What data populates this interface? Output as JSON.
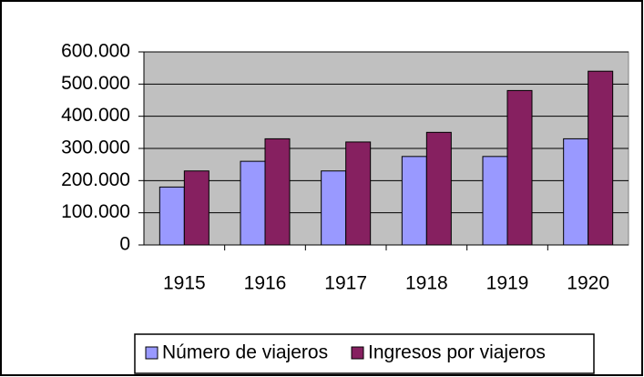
{
  "chart_data": {
    "type": "bar",
    "categories": [
      "1915",
      "1916",
      "1917",
      "1918",
      "1919",
      "1920"
    ],
    "series": [
      {
        "name": "Número de viajeros",
        "color": "#9999ff",
        "values": [
          180000,
          260000,
          230000,
          275000,
          275000,
          330000
        ]
      },
      {
        "name": "Ingresos por viajeros",
        "color": "#862060",
        "values": [
          230000,
          330000,
          320000,
          350000,
          480000,
          540000
        ]
      }
    ],
    "ylim": [
      0,
      600000
    ],
    "yticks": [
      0,
      {
        "value": 100000,
        "label": "100.000"
      },
      {
        "value": 200000,
        "label": "200.000"
      },
      {
        "value": 300000,
        "label": "300.000"
      },
      {
        "value": 400000,
        "label": "400.000"
      },
      {
        "value": 500000,
        "label": "500.000"
      },
      {
        "value": 600000,
        "label": "600.000"
      }
    ],
    "grid": true,
    "legend": "bottom"
  }
}
